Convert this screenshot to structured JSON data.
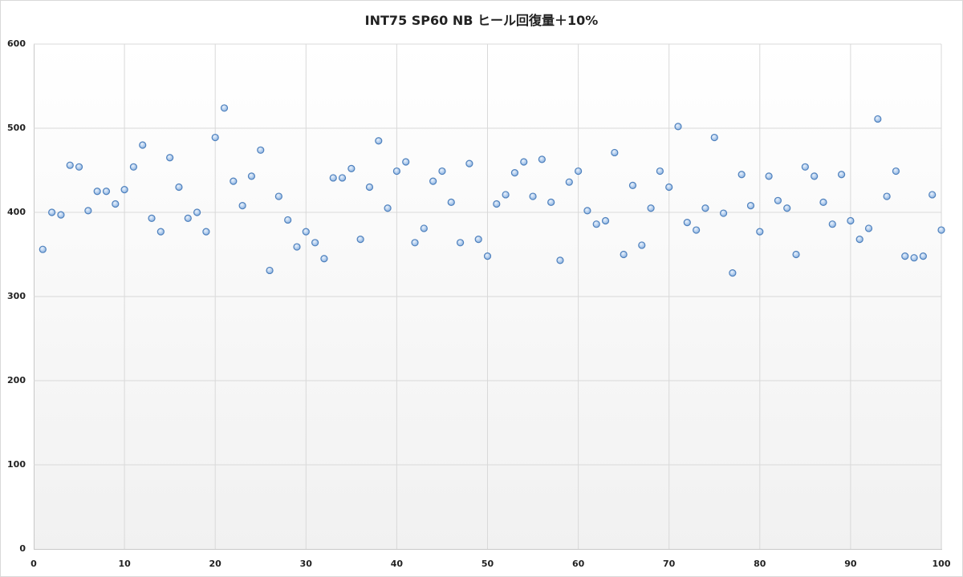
{
  "chart_data": {
    "type": "scatter",
    "title": "INT75 SP60 NB ヒール回復量＋10%",
    "xlabel": "",
    "ylabel": "",
    "xlim": [
      0,
      100
    ],
    "ylim": [
      0,
      600
    ],
    "x_ticks": [
      "0",
      "10",
      "20",
      "30",
      "40",
      "50",
      "60",
      "70",
      "80",
      "90",
      "100"
    ],
    "y_ticks": [
      "0",
      "100",
      "200",
      "300",
      "400",
      "500",
      "600"
    ],
    "grid": true,
    "legend": "none",
    "marker_color": "#8db4e2",
    "marker_edge_color": "#4f81bd",
    "x": [
      1,
      2,
      3,
      4,
      5,
      6,
      7,
      8,
      9,
      10,
      11,
      12,
      13,
      14,
      15,
      16,
      17,
      18,
      19,
      20,
      21,
      22,
      23,
      24,
      25,
      26,
      27,
      28,
      29,
      30,
      31,
      32,
      33,
      34,
      35,
      36,
      37,
      38,
      39,
      40,
      41,
      42,
      43,
      44,
      45,
      46,
      47,
      48,
      49,
      50,
      51,
      52,
      53,
      54,
      55,
      56,
      57,
      58,
      59,
      60,
      61,
      62,
      63,
      64,
      65,
      66,
      67,
      68,
      69,
      70,
      71,
      72,
      73,
      74,
      75,
      76,
      77,
      78,
      79,
      80,
      81,
      82,
      83,
      84,
      85,
      86,
      87,
      88,
      89,
      90,
      91,
      92,
      93,
      94,
      95,
      96,
      97,
      98,
      99,
      100
    ],
    "values": [
      356,
      400,
      397,
      456,
      454,
      402,
      425,
      425,
      410,
      427,
      454,
      480,
      393,
      377,
      465,
      430,
      393,
      400,
      377,
      489,
      524,
      437,
      408,
      443,
      474,
      331,
      419,
      391,
      359,
      377,
      364,
      345,
      441,
      441,
      452,
      368,
      430,
      485,
      405,
      449,
      460,
      364,
      381,
      437,
      449,
      412,
      364,
      458,
      368,
      348,
      410,
      421,
      447,
      460,
      419,
      463,
      412,
      343,
      436,
      449,
      402,
      386,
      390,
      471,
      350,
      432,
      361,
      405,
      449,
      430,
      502,
      388,
      379,
      405,
      489,
      399,
      328,
      445,
      408,
      377,
      443,
      414,
      405,
      350,
      454,
      443,
      412,
      386,
      445,
      390,
      368,
      381,
      511,
      419,
      449,
      348,
      346,
      348,
      421,
      379
    ]
  }
}
